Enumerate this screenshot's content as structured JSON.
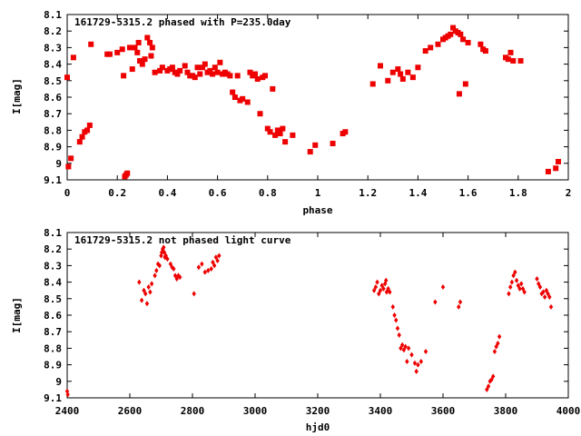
{
  "chart_data": [
    {
      "type": "scatter",
      "title": "161729-5315.2 phased with P=235.0day",
      "xlabel": "phase",
      "ylabel": "I[mag]",
      "xlim": [
        0,
        2
      ],
      "ylim": [
        9.1,
        8.1
      ],
      "y_inverted": true,
      "marker": "asterisk",
      "color": "#ee0000",
      "grid": false,
      "x_ticks": [
        "0",
        "0.2",
        "0.4",
        "0.6",
        "0.8",
        "1",
        "1.2",
        "1.4",
        "1.6",
        "1.8",
        "2"
      ],
      "y_ticks": [
        "8.1",
        "8.2",
        "8.3",
        "8.4",
        "8.5",
        "8.6",
        "8.7",
        "8.8",
        "8.9",
        "9",
        "9.1"
      ],
      "points": [
        [
          0.0,
          8.48
        ],
        [
          0.005,
          9.02
        ],
        [
          0.015,
          8.97
        ],
        [
          0.025,
          8.36
        ],
        [
          0.05,
          8.87
        ],
        [
          0.06,
          8.84
        ],
        [
          0.07,
          8.81
        ],
        [
          0.08,
          8.8
        ],
        [
          0.09,
          8.77
        ],
        [
          0.095,
          8.28
        ],
        [
          0.16,
          8.34
        ],
        [
          0.17,
          8.34
        ],
        [
          0.2,
          8.33
        ],
        [
          0.22,
          8.31
        ],
        [
          0.225,
          8.47
        ],
        [
          0.23,
          9.08
        ],
        [
          0.235,
          9.07
        ],
        [
          0.24,
          9.06
        ],
        [
          0.25,
          8.3
        ],
        [
          0.26,
          8.43
        ],
        [
          0.27,
          8.3
        ],
        [
          0.28,
          8.33
        ],
        [
          0.285,
          8.27
        ],
        [
          0.29,
          8.38
        ],
        [
          0.3,
          8.4
        ],
        [
          0.31,
          8.37
        ],
        [
          0.32,
          8.24
        ],
        [
          0.33,
          8.27
        ],
        [
          0.335,
          8.35
        ],
        [
          0.34,
          8.3
        ],
        [
          0.35,
          8.45
        ],
        [
          0.37,
          8.44
        ],
        [
          0.38,
          8.42
        ],
        [
          0.4,
          8.44
        ],
        [
          0.41,
          8.43
        ],
        [
          0.42,
          8.42
        ],
        [
          0.43,
          8.45
        ],
        [
          0.44,
          8.46
        ],
        [
          0.45,
          8.44
        ],
        [
          0.47,
          8.41
        ],
        [
          0.48,
          8.45
        ],
        [
          0.49,
          8.47
        ],
        [
          0.5,
          8.47
        ],
        [
          0.51,
          8.48
        ],
        [
          0.52,
          8.42
        ],
        [
          0.53,
          8.46
        ],
        [
          0.54,
          8.42
        ],
        [
          0.55,
          8.4
        ],
        [
          0.56,
          8.45
        ],
        [
          0.57,
          8.44
        ],
        [
          0.58,
          8.46
        ],
        [
          0.59,
          8.42
        ],
        [
          0.6,
          8.45
        ],
        [
          0.61,
          8.39
        ],
        [
          0.62,
          8.46
        ],
        [
          0.63,
          8.45
        ],
        [
          0.64,
          8.46
        ],
        [
          0.65,
          8.47
        ],
        [
          0.66,
          8.57
        ],
        [
          0.67,
          8.6
        ],
        [
          0.68,
          8.47
        ],
        [
          0.69,
          8.62
        ],
        [
          0.7,
          8.61
        ],
        [
          0.72,
          8.63
        ],
        [
          0.73,
          8.45
        ],
        [
          0.74,
          8.47
        ],
        [
          0.75,
          8.46
        ],
        [
          0.76,
          8.49
        ],
        [
          0.77,
          8.7
        ],
        [
          0.78,
          8.48
        ],
        [
          0.79,
          8.47
        ],
        [
          0.8,
          8.79
        ],
        [
          0.81,
          8.81
        ],
        [
          0.82,
          8.55
        ],
        [
          0.83,
          8.83
        ],
        [
          0.84,
          8.8
        ],
        [
          0.85,
          8.82
        ],
        [
          0.86,
          8.79
        ],
        [
          0.87,
          8.87
        ],
        [
          0.9,
          8.83
        ],
        [
          0.97,
          8.93
        ],
        [
          0.99,
          8.89
        ],
        [
          1.06,
          8.88
        ],
        [
          1.1,
          8.82
        ],
        [
          1.11,
          8.81
        ],
        [
          1.22,
          8.52
        ],
        [
          1.25,
          8.41
        ],
        [
          1.28,
          8.5
        ],
        [
          1.3,
          8.45
        ],
        [
          1.32,
          8.43
        ],
        [
          1.33,
          8.46
        ],
        [
          1.34,
          8.49
        ],
        [
          1.36,
          8.45
        ],
        [
          1.38,
          8.48
        ],
        [
          1.4,
          8.42
        ],
        [
          1.43,
          8.32
        ],
        [
          1.45,
          8.3
        ],
        [
          1.48,
          8.28
        ],
        [
          1.5,
          8.25
        ],
        [
          1.51,
          8.24
        ],
        [
          1.52,
          8.23
        ],
        [
          1.53,
          8.22
        ],
        [
          1.54,
          8.18
        ],
        [
          1.55,
          8.2
        ],
        [
          1.56,
          8.21
        ],
        [
          1.57,
          8.22
        ],
        [
          1.58,
          8.25
        ],
        [
          1.59,
          8.52
        ],
        [
          1.6,
          8.27
        ],
        [
          1.565,
          8.58
        ],
        [
          1.65,
          8.28
        ],
        [
          1.66,
          8.31
        ],
        [
          1.67,
          8.32
        ],
        [
          1.75,
          8.36
        ],
        [
          1.76,
          8.37
        ],
        [
          1.77,
          8.33
        ],
        [
          1.78,
          8.38
        ],
        [
          1.81,
          8.38
        ],
        [
          1.92,
          9.05
        ],
        [
          1.95,
          9.03
        ],
        [
          1.96,
          8.99
        ]
      ]
    },
    {
      "type": "scatter",
      "title": "161729-5315.2 not phased light curve",
      "xlabel": "hjd0",
      "ylabel": "I[mag]",
      "xlim": [
        2400,
        4000
      ],
      "ylim": [
        9.1,
        8.1
      ],
      "y_inverted": true,
      "marker": "diamond",
      "color": "#ee0000",
      "grid": false,
      "x_ticks": [
        "2400",
        "2600",
        "2800",
        "3000",
        "3200",
        "3400",
        "3600",
        "3800",
        "4000"
      ],
      "y_ticks": [
        "8.1",
        "8.2",
        "8.3",
        "8.4",
        "8.5",
        "8.6",
        "8.7",
        "8.8",
        "8.9",
        "9",
        "9.1"
      ],
      "points": [
        [
          2400,
          9.06
        ],
        [
          2402,
          9.08
        ],
        [
          2630,
          8.4
        ],
        [
          2638,
          8.51
        ],
        [
          2645,
          8.45
        ],
        [
          2650,
          8.47
        ],
        [
          2655,
          8.53
        ],
        [
          2660,
          8.43
        ],
        [
          2665,
          8.46
        ],
        [
          2670,
          8.41
        ],
        [
          2680,
          8.36
        ],
        [
          2685,
          8.33
        ],
        [
          2690,
          8.29
        ],
        [
          2695,
          8.3
        ],
        [
          2700,
          8.24
        ],
        [
          2702,
          8.22
        ],
        [
          2705,
          8.2
        ],
        [
          2708,
          8.19
        ],
        [
          2710,
          8.22
        ],
        [
          2712,
          8.25
        ],
        [
          2715,
          8.24
        ],
        [
          2720,
          8.26
        ],
        [
          2730,
          8.29
        ],
        [
          2735,
          8.31
        ],
        [
          2740,
          8.32
        ],
        [
          2745,
          8.36
        ],
        [
          2750,
          8.38
        ],
        [
          2755,
          8.36
        ],
        [
          2760,
          8.37
        ],
        [
          2805,
          8.47
        ],
        [
          2820,
          8.31
        ],
        [
          2830,
          8.29
        ],
        [
          2840,
          8.34
        ],
        [
          2850,
          8.33
        ],
        [
          2860,
          8.32
        ],
        [
          2865,
          8.28
        ],
        [
          2870,
          8.3
        ],
        [
          2875,
          8.25
        ],
        [
          2880,
          8.27
        ],
        [
          2885,
          8.24
        ],
        [
          3380,
          8.45
        ],
        [
          3385,
          8.43
        ],
        [
          3390,
          8.4
        ],
        [
          3395,
          8.47
        ],
        [
          3400,
          8.45
        ],
        [
          3405,
          8.42
        ],
        [
          3410,
          8.44
        ],
        [
          3415,
          8.41
        ],
        [
          3418,
          8.39
        ],
        [
          3420,
          8.46
        ],
        [
          3425,
          8.44
        ],
        [
          3430,
          8.46
        ],
        [
          3440,
          8.55
        ],
        [
          3445,
          8.6
        ],
        [
          3450,
          8.63
        ],
        [
          3455,
          8.68
        ],
        [
          3460,
          8.72
        ],
        [
          3465,
          8.8
        ],
        [
          3470,
          8.78
        ],
        [
          3475,
          8.81
        ],
        [
          3480,
          8.79
        ],
        [
          3485,
          8.88
        ],
        [
          3490,
          8.8
        ],
        [
          3500,
          8.84
        ],
        [
          3510,
          8.89
        ],
        [
          3515,
          8.94
        ],
        [
          3520,
          8.9
        ],
        [
          3530,
          8.88
        ],
        [
          3545,
          8.82
        ],
        [
          3575,
          8.52
        ],
        [
          3600,
          8.43
        ],
        [
          3650,
          8.55
        ],
        [
          3655,
          8.52
        ],
        [
          3740,
          9.05
        ],
        [
          3745,
          9.03
        ],
        [
          3750,
          9.0
        ],
        [
          3755,
          8.99
        ],
        [
          3760,
          8.97
        ],
        [
          3765,
          8.82
        ],
        [
          3770,
          8.79
        ],
        [
          3775,
          8.77
        ],
        [
          3780,
          8.73
        ],
        [
          3810,
          8.47
        ],
        [
          3815,
          8.43
        ],
        [
          3820,
          8.4
        ],
        [
          3825,
          8.36
        ],
        [
          3830,
          8.34
        ],
        [
          3835,
          8.39
        ],
        [
          3840,
          8.42
        ],
        [
          3845,
          8.44
        ],
        [
          3850,
          8.41
        ],
        [
          3855,
          8.44
        ],
        [
          3860,
          8.46
        ],
        [
          3900,
          8.38
        ],
        [
          3905,
          8.41
        ],
        [
          3910,
          8.43
        ],
        [
          3915,
          8.47
        ],
        [
          3920,
          8.46
        ],
        [
          3925,
          8.49
        ],
        [
          3930,
          8.45
        ],
        [
          3935,
          8.47
        ],
        [
          3940,
          8.49
        ],
        [
          3945,
          8.55
        ]
      ]
    }
  ]
}
